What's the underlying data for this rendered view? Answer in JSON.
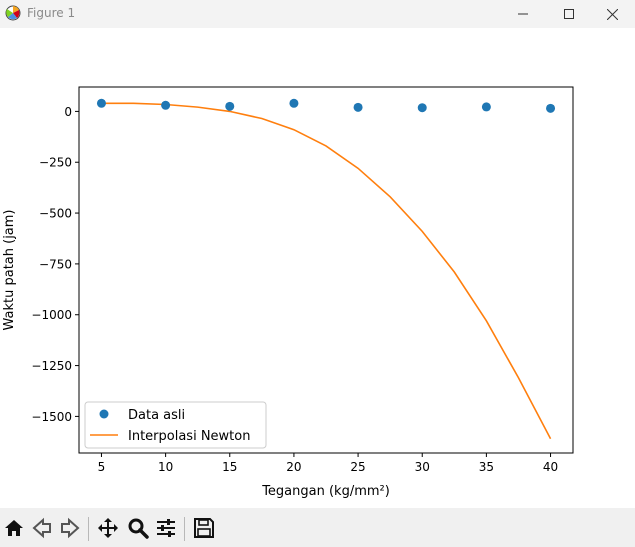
{
  "window": {
    "title": "Figure 1",
    "icon": "matplotlib-icon",
    "controls": [
      "minimize-icon",
      "maximize-icon",
      "close-icon"
    ]
  },
  "toolbar": {
    "buttons": [
      "home-icon",
      "back-icon",
      "forward-icon",
      "pan-icon",
      "zoom-icon",
      "configure-subplots-icon",
      "save-icon"
    ]
  },
  "chart_data": {
    "type": "scatter",
    "title": "",
    "xlabel": "Tegangan (kg/mm²)",
    "ylabel": "Waktu patah (jam)",
    "xlim": [
      3.25,
      41.75
    ],
    "ylim": [
      -1680,
      120
    ],
    "xticks": [
      5,
      10,
      15,
      20,
      25,
      30,
      35,
      40
    ],
    "yticks": [
      0,
      -250,
      -500,
      -750,
      -1000,
      -1250,
      -1500
    ],
    "ytick_labels": [
      "0",
      "−250",
      "−500",
      "−750",
      "−1000",
      "−1250",
      "−1500"
    ],
    "grid": false,
    "legend_position": "lower-left",
    "series": [
      {
        "name": "Data asli",
        "kind": "scatter",
        "color": "#1f77b4",
        "x": [
          5,
          10,
          15,
          20,
          25,
          30,
          35,
          40
        ],
        "y": [
          40,
          30,
          25,
          40,
          20,
          18,
          22,
          15
        ]
      },
      {
        "name": "Interpolasi Newton",
        "kind": "line",
        "color": "#ff7f0e",
        "x": [
          5,
          7.5,
          10,
          12.5,
          15,
          17.5,
          20,
          22.5,
          25,
          27.5,
          30,
          32.5,
          35,
          37.5,
          40
        ],
        "y": [
          40,
          40,
          34,
          21,
          0,
          -35,
          -90,
          -170,
          -280,
          -420,
          -590,
          -790,
          -1030,
          -1310,
          -1610
        ]
      }
    ]
  }
}
